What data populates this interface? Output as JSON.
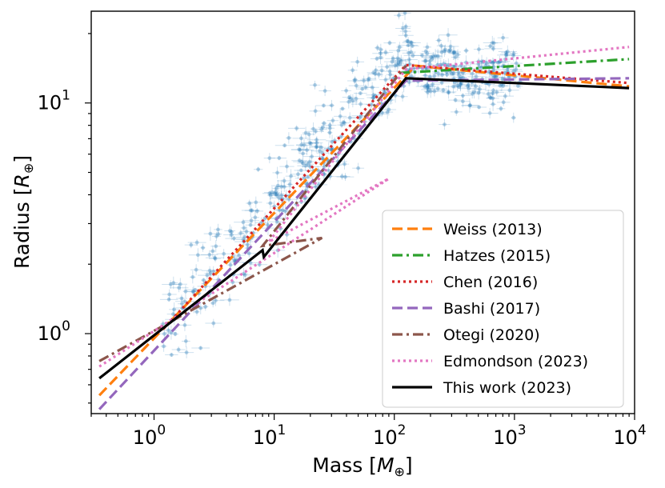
{
  "chart_data": {
    "type": "scatter",
    "xlabel": "Mass [M⊕]",
    "ylabel": "Radius [R⊕]",
    "xlabel_main": "Mass [",
    "xlabel_sym": "M",
    "xlabel_sub": "⊕",
    "xlabel_end": "]",
    "ylabel_main": "Radius [",
    "ylabel_sym": "R",
    "ylabel_sub": "⊕",
    "ylabel_end": "]",
    "xscale": "log",
    "yscale": "log",
    "xlim": [
      0.3,
      10000
    ],
    "ylim": [
      0.45,
      25
    ],
    "x_ticks": [
      {
        "value": 1,
        "base": "10",
        "exp": "0"
      },
      {
        "value": 10,
        "base": "10",
        "exp": "1"
      },
      {
        "value": 100,
        "base": "10",
        "exp": "2"
      },
      {
        "value": 1000,
        "base": "10",
        "exp": "3"
      },
      {
        "value": 10000,
        "base": "10",
        "exp": "4"
      }
    ],
    "y_ticks": [
      {
        "value": 1,
        "base": "10",
        "exp": "0"
      },
      {
        "value": 10,
        "base": "10",
        "exp": "1"
      }
    ],
    "legend_position": "lower-right",
    "scatter_color": "#1f77b4",
    "series": [
      {
        "name": "Weiss (2013)",
        "color": "#ff7f0e",
        "style": "dashed",
        "x": [
          0.35,
          150,
          9000
        ],
        "y": [
          0.54,
          14.5,
          11.8
        ]
      },
      {
        "name": "Hatzes (2015)",
        "color": "#2ca02c",
        "style": "dashdot",
        "x": [
          110,
          9000
        ],
        "y": [
          13.5,
          15.5
        ]
      },
      {
        "name": "Chen (2016)",
        "color": "#d62728",
        "style": "dotted",
        "x": [
          1.2,
          125,
          9000
        ],
        "y": [
          1.05,
          14.6,
          12.2
        ]
      },
      {
        "name": "Bashi (2017)",
        "color": "#9467bd",
        "style": "dashed",
        "x": [
          0.35,
          125,
          9000
        ],
        "y": [
          0.47,
          12.5,
          12.8
        ]
      },
      {
        "name": "Otegi (2020)",
        "color": "#8c564b",
        "style": "dashdot",
        "x": [
          0.35,
          25,
          8,
          125
        ],
        "y": [
          0.76,
          2.6,
          2.4,
          14.5
        ]
      },
      {
        "name": "Edmondson (2023)",
        "color": "#e377c2",
        "style": "dotted",
        "x": [
          0.35,
          90,
          9,
          125,
          9000
        ],
        "y": [
          0.72,
          4.7,
          2.5,
          14.0,
          17.5
        ]
      },
      {
        "name": "This work (2023)",
        "color": "#000000",
        "style": "solid",
        "x": [
          0.35,
          8,
          8.2,
          125,
          9000
        ],
        "y": [
          0.64,
          2.3,
          2.15,
          12.8,
          11.6
        ]
      }
    ]
  }
}
